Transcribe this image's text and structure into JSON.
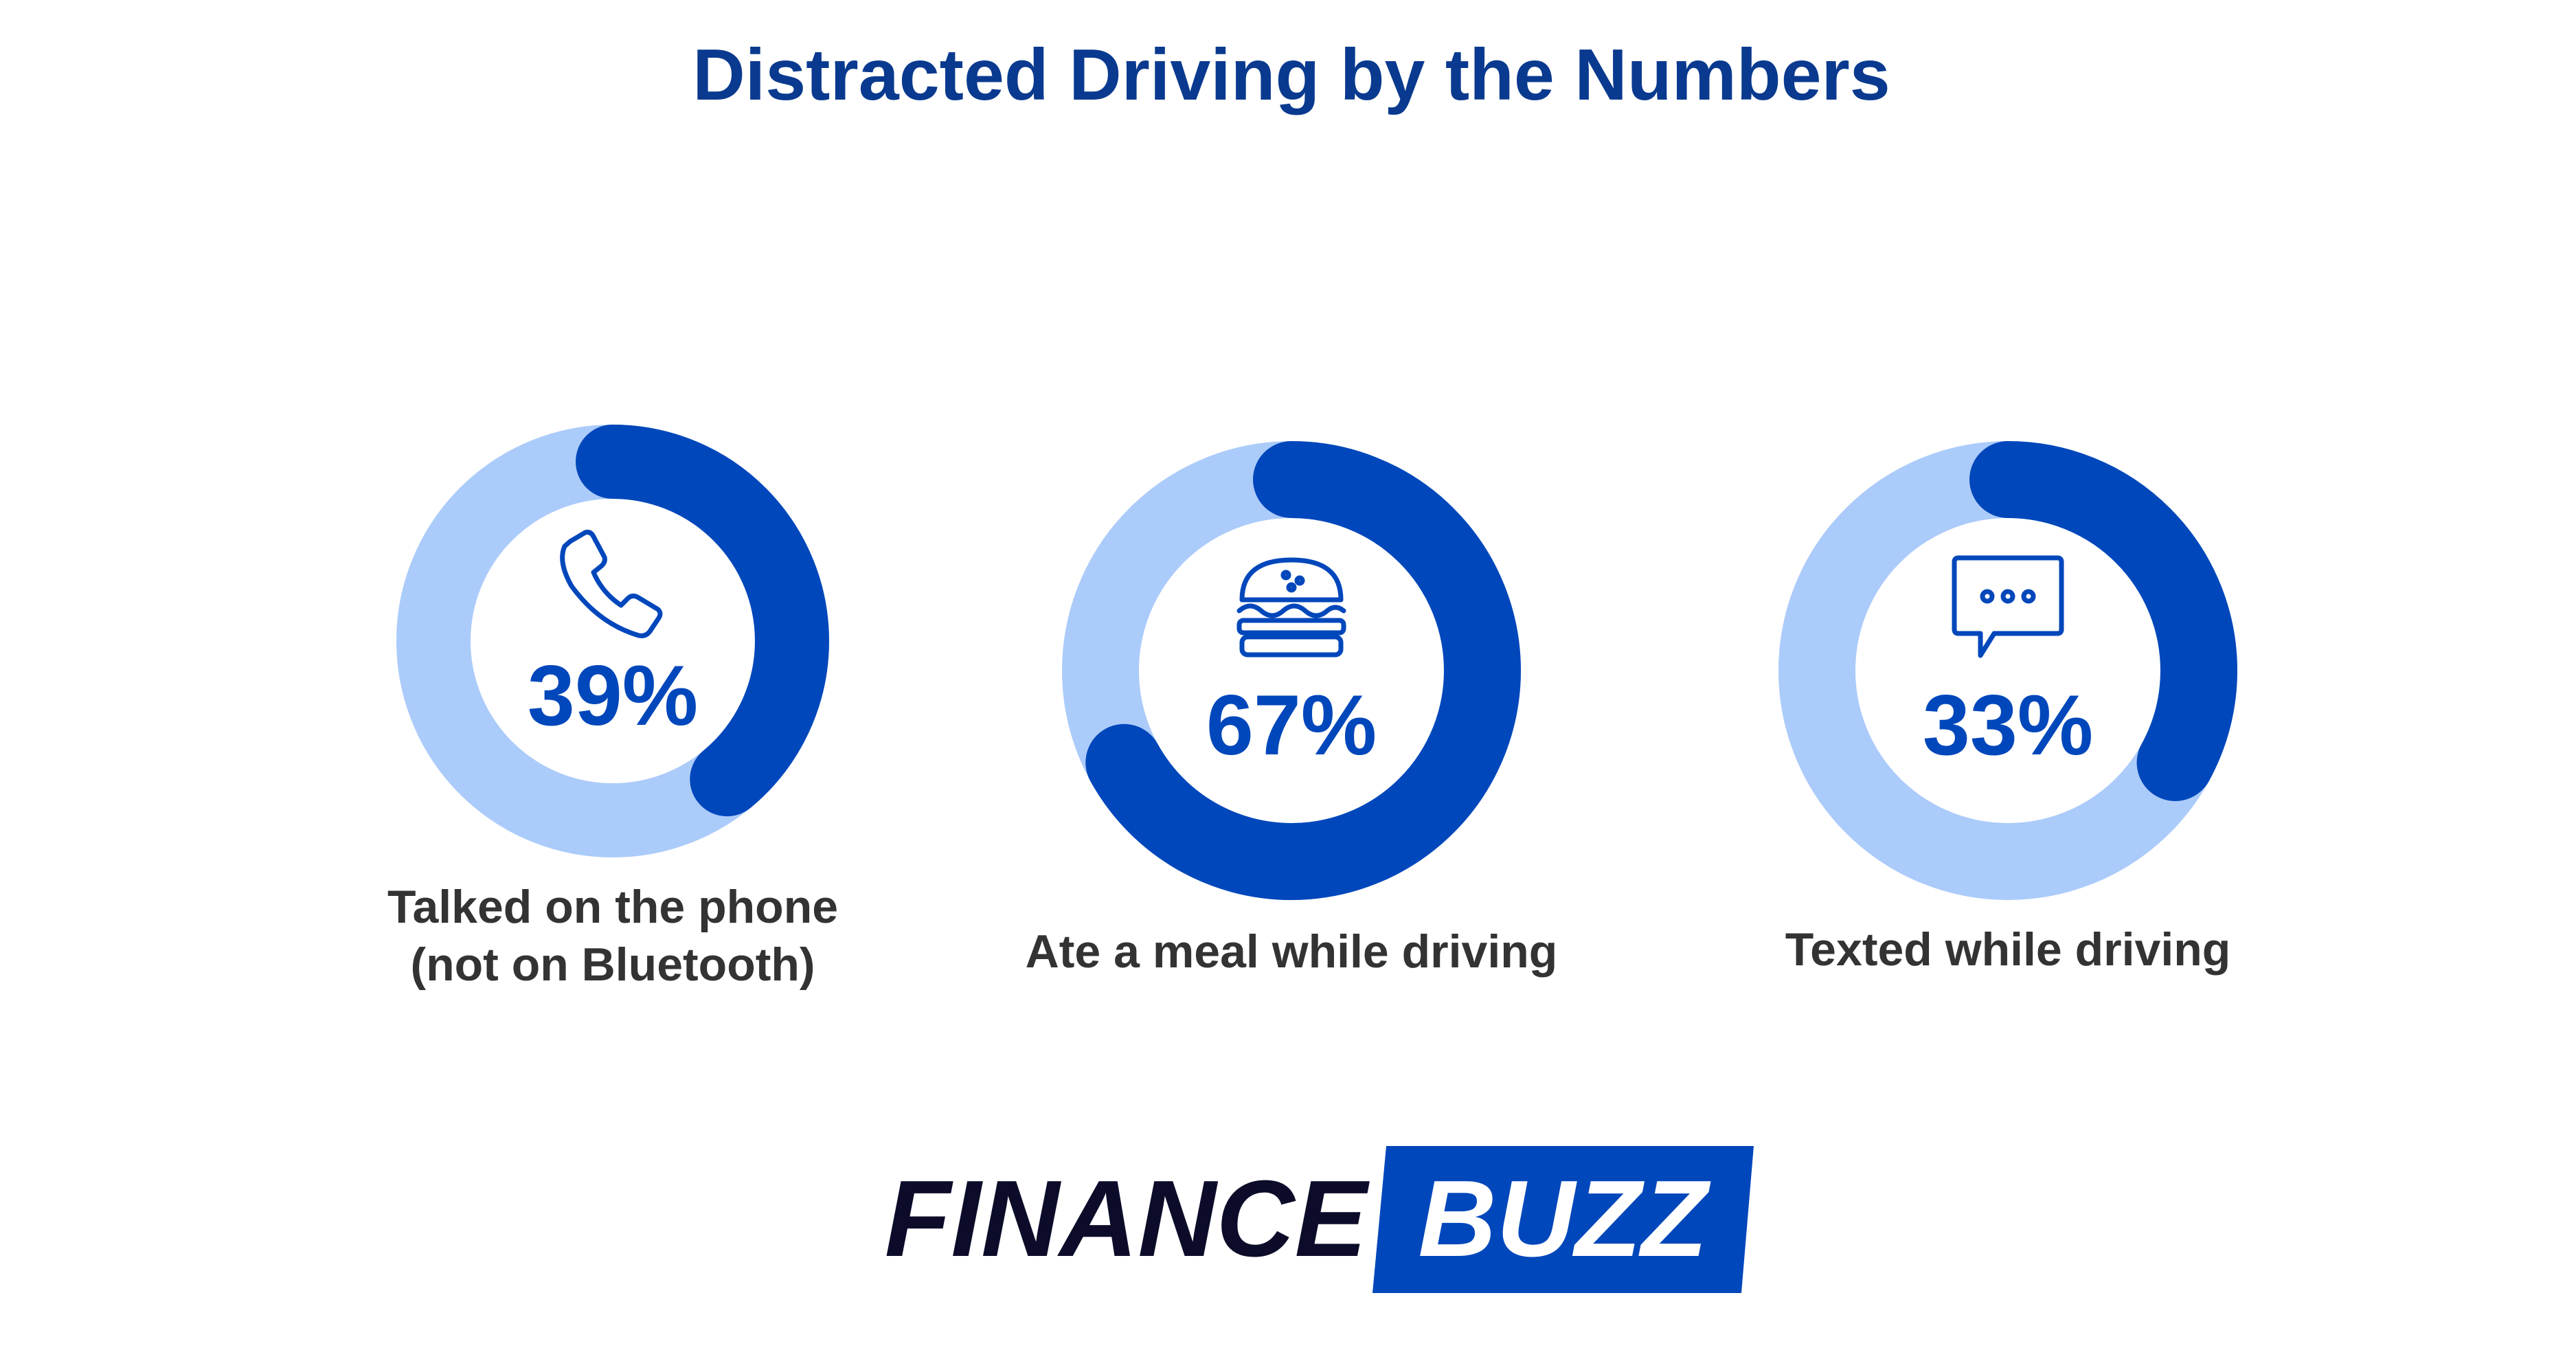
{
  "chart_data": {
    "type": "donut",
    "title": "Distracted Driving by the Numbers",
    "categories": [
      "Talked on the phone (not on Bluetooth)",
      "Ate a meal while driving",
      "Texted while driving"
    ],
    "values": [
      39,
      67,
      33
    ],
    "value_labels": [
      "39%",
      "67%",
      "33%"
    ],
    "color": "#0047bb",
    "track_color": "#abcbfa"
  },
  "logo": {
    "left": "FINANCE",
    "right": "BUZZ"
  }
}
